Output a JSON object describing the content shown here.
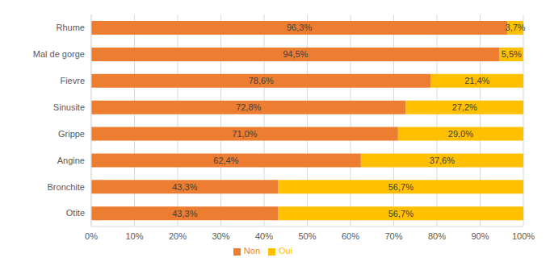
{
  "chart_data": {
    "type": "bar",
    "orientation": "horizontal",
    "stacked": true,
    "grid": true,
    "legend": "bottom",
    "data_labels": true,
    "categories": [
      "Rhume",
      "Mal de gorge",
      "Fievre",
      "Sinusite",
      "Grippe",
      "Angine",
      "Bronchite",
      "Otite"
    ],
    "series": [
      {
        "name": "Non",
        "color": "#ed7d31",
        "values": [
          96.3,
          94.5,
          78.6,
          72.8,
          71.0,
          62.4,
          43.3,
          43.3
        ],
        "value_labels": [
          "96,3%",
          "94,5%",
          "78,6%",
          "72,8%",
          "71,0%",
          "62,4%",
          "43,3%",
          "43,3%"
        ]
      },
      {
        "name": "Oui",
        "color": "#ffc000",
        "values": [
          3.7,
          5.5,
          21.4,
          27.2,
          29.0,
          37.6,
          56.7,
          56.7
        ],
        "value_labels": [
          "3,7%",
          "5,5%",
          "21,4%",
          "27,2%",
          "29,0%",
          "37,6%",
          "56,7%",
          "56,7%"
        ]
      }
    ],
    "xlim": [
      0,
      100
    ],
    "xticks": [
      {
        "value": 0,
        "label": "0%"
      },
      {
        "value": 10,
        "label": "10%"
      },
      {
        "value": 20,
        "label": "20%"
      },
      {
        "value": 30,
        "label": "30%"
      },
      {
        "value": 40,
        "label": "40%"
      },
      {
        "value": 50,
        "label": "50%"
      },
      {
        "value": 60,
        "label": "60%"
      },
      {
        "value": 70,
        "label": "70%"
      },
      {
        "value": 80,
        "label": "80%"
      },
      {
        "value": 90,
        "label": "90%"
      },
      {
        "value": 100,
        "label": "100%"
      }
    ]
  }
}
